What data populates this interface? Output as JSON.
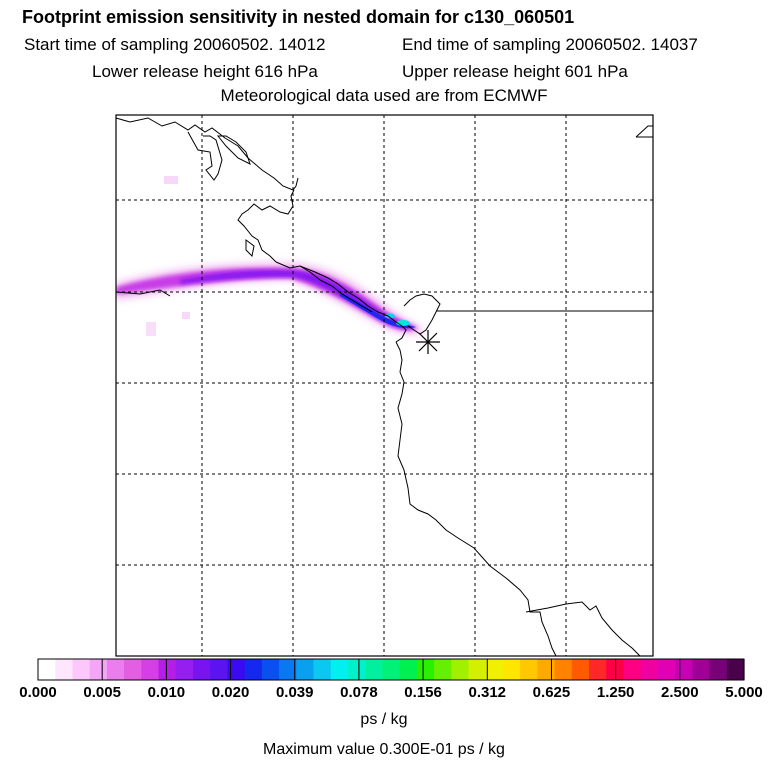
{
  "header": {
    "title": "Footprint emission sensitivity in nested domain for c130_060501",
    "start_time": "Start time of sampling 20060502. 14012",
    "end_time": "End time of sampling 20060502. 14037",
    "lower_release": "Lower release height  616 hPa",
    "upper_release": "Upper release height  601 hPa",
    "met_data": "Meteorological data used are from ECMWF"
  },
  "colorbar": {
    "colors": [
      "#ffffff",
      "#ffe6ff",
      "#fcc8fc",
      "#f5a5f5",
      "#ec7dec",
      "#e25ee2",
      "#d63fe6",
      "#b41ee6",
      "#961ef0",
      "#7814f0",
      "#5a14f0",
      "#3c0af0",
      "#1428f0",
      "#0a50f0",
      "#0a78f0",
      "#0aa0f0",
      "#0ac8f0",
      "#00f0f0",
      "#00f0c8",
      "#00f0a0",
      "#00f078",
      "#00f050",
      "#28f000",
      "#64f000",
      "#a0f000",
      "#d2f000",
      "#f0f000",
      "#ffe600",
      "#ffc800",
      "#ffaa00",
      "#ff8200",
      "#ff5a00",
      "#ff2828",
      "#ff0046",
      "#ff0082",
      "#f000a0",
      "#e100b4",
      "#c800b4",
      "#a00096",
      "#780078",
      "#4b004b"
    ],
    "labels": [
      "0.000",
      "0.005",
      "0.010",
      "0.020",
      "0.039",
      "0.078",
      "0.156",
      "0.312",
      "0.625",
      "1.250",
      "2.500",
      "5.000"
    ],
    "unit": "ps / kg",
    "max_value": "Maximum value  0.300E-01 ps / kg"
  }
}
